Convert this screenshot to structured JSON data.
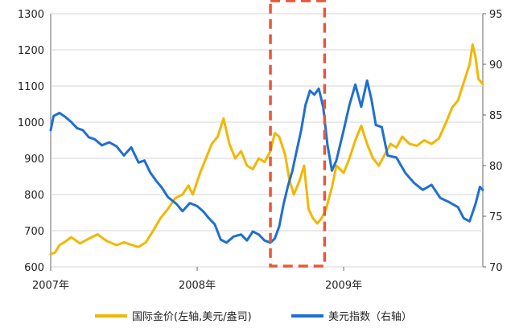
{
  "chart_data": {
    "type": "line",
    "y_left": {
      "min": 600,
      "max": 1300,
      "ticks": [
        600,
        700,
        800,
        900,
        1000,
        1100,
        1200,
        1300
      ]
    },
    "y_right": {
      "min": 70,
      "max": 95,
      "ticks": [
        70,
        75,
        80,
        85,
        90,
        95
      ]
    },
    "x": {
      "min": 2007.0,
      "max": 2009.95,
      "ticks": [
        2007,
        2008,
        2009
      ],
      "tick_labels": [
        "2007年",
        "2008年",
        "2009年"
      ]
    },
    "highlight": {
      "x_start": 2008.5,
      "x_end": 2008.87,
      "color": "#e8573a"
    },
    "series": [
      {
        "name": "国际金价(左轴,美元/盎司)",
        "axis": "left",
        "color": "#f2b705",
        "points": [
          [
            2007.0,
            635
          ],
          [
            2007.03,
            640
          ],
          [
            2007.06,
            660
          ],
          [
            2007.1,
            670
          ],
          [
            2007.14,
            682
          ],
          [
            2007.2,
            665
          ],
          [
            2007.26,
            678
          ],
          [
            2007.32,
            690
          ],
          [
            2007.38,
            672
          ],
          [
            2007.45,
            660
          ],
          [
            2007.5,
            668
          ],
          [
            2007.56,
            660
          ],
          [
            2007.6,
            655
          ],
          [
            2007.65,
            668
          ],
          [
            2007.7,
            700
          ],
          [
            2007.75,
            735
          ],
          [
            2007.8,
            760
          ],
          [
            2007.85,
            790
          ],
          [
            2007.9,
            800
          ],
          [
            2007.94,
            825
          ],
          [
            2007.97,
            800
          ],
          [
            2008.02,
            860
          ],
          [
            2008.06,
            900
          ],
          [
            2008.1,
            940
          ],
          [
            2008.14,
            960
          ],
          [
            2008.18,
            1010
          ],
          [
            2008.22,
            940
          ],
          [
            2008.26,
            900
          ],
          [
            2008.3,
            920
          ],
          [
            2008.34,
            880
          ],
          [
            2008.38,
            870
          ],
          [
            2008.42,
            900
          ],
          [
            2008.46,
            890
          ],
          [
            2008.5,
            920
          ],
          [
            2008.53,
            970
          ],
          [
            2008.56,
            960
          ],
          [
            2008.6,
            910
          ],
          [
            2008.63,
            840
          ],
          [
            2008.66,
            800
          ],
          [
            2008.7,
            840
          ],
          [
            2008.73,
            880
          ],
          [
            2008.76,
            760
          ],
          [
            2008.79,
            735
          ],
          [
            2008.82,
            720
          ],
          [
            2008.85,
            735
          ],
          [
            2008.88,
            760
          ],
          [
            2008.92,
            820
          ],
          [
            2008.95,
            880
          ],
          [
            2009.0,
            860
          ],
          [
            2009.04,
            900
          ],
          [
            2009.08,
            950
          ],
          [
            2009.12,
            990
          ],
          [
            2009.16,
            940
          ],
          [
            2009.2,
            900
          ],
          [
            2009.24,
            880
          ],
          [
            2009.28,
            910
          ],
          [
            2009.32,
            940
          ],
          [
            2009.36,
            930
          ],
          [
            2009.4,
            960
          ],
          [
            2009.45,
            940
          ],
          [
            2009.5,
            935
          ],
          [
            2009.55,
            950
          ],
          [
            2009.6,
            940
          ],
          [
            2009.65,
            955
          ],
          [
            2009.7,
            1000
          ],
          [
            2009.74,
            1040
          ],
          [
            2009.78,
            1060
          ],
          [
            2009.82,
            1110
          ],
          [
            2009.86,
            1160
          ],
          [
            2009.88,
            1215
          ],
          [
            2009.9,
            1180
          ],
          [
            2009.92,
            1120
          ],
          [
            2009.95,
            1105
          ]
        ]
      },
      {
        "name": "美元指数（右轴）",
        "axis": "right",
        "color": "#1f6fd0",
        "points": [
          [
            2007.0,
            83.5
          ],
          [
            2007.02,
            84.9
          ],
          [
            2007.06,
            85.2
          ],
          [
            2007.1,
            84.8
          ],
          [
            2007.14,
            84.3
          ],
          [
            2007.18,
            83.7
          ],
          [
            2007.22,
            83.5
          ],
          [
            2007.26,
            82.8
          ],
          [
            2007.3,
            82.6
          ],
          [
            2007.35,
            82.0
          ],
          [
            2007.4,
            82.3
          ],
          [
            2007.45,
            81.9
          ],
          [
            2007.5,
            81.0
          ],
          [
            2007.55,
            81.8
          ],
          [
            2007.6,
            80.3
          ],
          [
            2007.64,
            80.5
          ],
          [
            2007.68,
            79.3
          ],
          [
            2007.72,
            78.5
          ],
          [
            2007.76,
            77.8
          ],
          [
            2007.8,
            76.9
          ],
          [
            2007.86,
            76.2
          ],
          [
            2007.9,
            75.5
          ],
          [
            2007.95,
            76.3
          ],
          [
            2008.0,
            76.0
          ],
          [
            2008.04,
            75.5
          ],
          [
            2008.08,
            74.8
          ],
          [
            2008.12,
            74.2
          ],
          [
            2008.16,
            72.7
          ],
          [
            2008.2,
            72.4
          ],
          [
            2008.25,
            73.0
          ],
          [
            2008.3,
            73.2
          ],
          [
            2008.34,
            72.6
          ],
          [
            2008.38,
            73.5
          ],
          [
            2008.42,
            73.2
          ],
          [
            2008.46,
            72.6
          ],
          [
            2008.5,
            72.4
          ],
          [
            2008.53,
            72.8
          ],
          [
            2008.56,
            74.0
          ],
          [
            2008.59,
            76.2
          ],
          [
            2008.62,
            78.0
          ],
          [
            2008.65,
            79.5
          ],
          [
            2008.68,
            81.5
          ],
          [
            2008.71,
            83.5
          ],
          [
            2008.74,
            86.0
          ],
          [
            2008.77,
            87.4
          ],
          [
            2008.8,
            87.0
          ],
          [
            2008.83,
            87.6
          ],
          [
            2008.86,
            85.8
          ],
          [
            2008.89,
            82.0
          ],
          [
            2008.92,
            79.5
          ],
          [
            2008.95,
            80.5
          ],
          [
            2009.0,
            83.5
          ],
          [
            2009.04,
            86.0
          ],
          [
            2009.08,
            88.0
          ],
          [
            2009.12,
            85.8
          ],
          [
            2009.16,
            88.4
          ],
          [
            2009.19,
            86.5
          ],
          [
            2009.22,
            84.0
          ],
          [
            2009.26,
            83.8
          ],
          [
            2009.3,
            81.0
          ],
          [
            2009.36,
            80.8
          ],
          [
            2009.42,
            79.3
          ],
          [
            2009.48,
            78.3
          ],
          [
            2009.54,
            77.6
          ],
          [
            2009.6,
            78.1
          ],
          [
            2009.66,
            76.8
          ],
          [
            2009.72,
            76.4
          ],
          [
            2009.78,
            75.9
          ],
          [
            2009.82,
            74.8
          ],
          [
            2009.86,
            74.5
          ],
          [
            2009.9,
            76.2
          ],
          [
            2009.93,
            77.9
          ],
          [
            2009.95,
            77.6
          ]
        ]
      }
    ]
  }
}
